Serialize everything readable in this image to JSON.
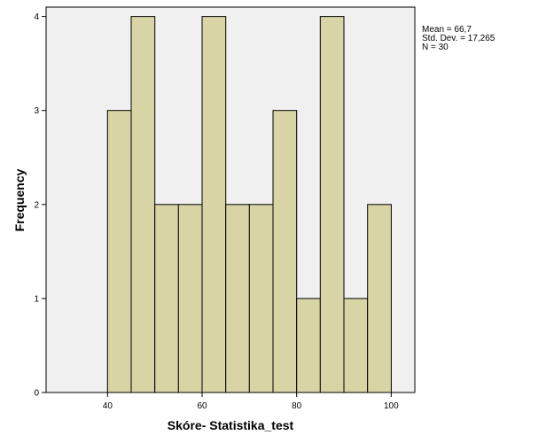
{
  "chart_data": {
    "type": "bar",
    "subtype": "histogram",
    "xlabel": "Skóre- Statistika_test",
    "ylabel": "Frequency",
    "xlim": [
      27,
      105
    ],
    "ylim": [
      0,
      4.1
    ],
    "x_ticks": [
      40,
      60,
      80,
      100
    ],
    "y_ticks": [
      0,
      1,
      2,
      3,
      4
    ],
    "bins": [
      {
        "start": 40,
        "end": 45,
        "count": 3
      },
      {
        "start": 45,
        "end": 50,
        "count": 4
      },
      {
        "start": 50,
        "end": 55,
        "count": 2
      },
      {
        "start": 55,
        "end": 60,
        "count": 2
      },
      {
        "start": 60,
        "end": 65,
        "count": 4
      },
      {
        "start": 65,
        "end": 70,
        "count": 2
      },
      {
        "start": 70,
        "end": 75,
        "count": 2
      },
      {
        "start": 75,
        "end": 80,
        "count": 3
      },
      {
        "start": 80,
        "end": 85,
        "count": 1
      },
      {
        "start": 85,
        "end": 90,
        "count": 4
      },
      {
        "start": 90,
        "end": 95,
        "count": 1
      },
      {
        "start": 95,
        "end": 100,
        "count": 2
      }
    ],
    "bar_color": "#d8d4a6",
    "plot_background": "#f0f0f0",
    "grid": false,
    "stats": {
      "mean": "Mean = 66,7",
      "std": "Std. Dev. = 17,265",
      "n": "N = 30"
    }
  }
}
